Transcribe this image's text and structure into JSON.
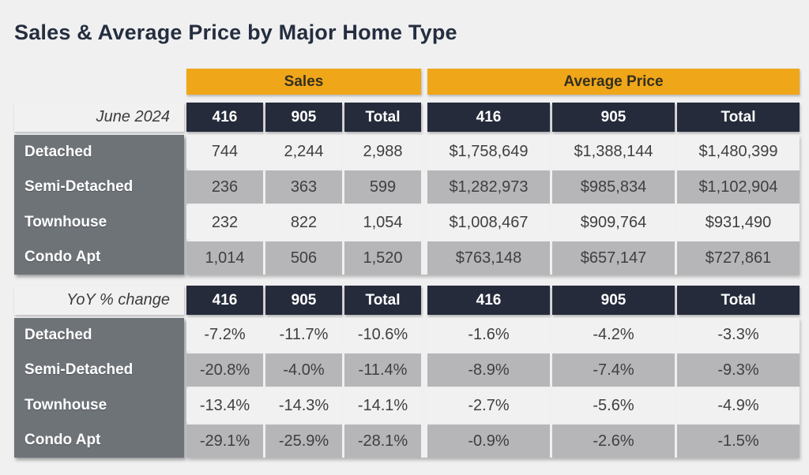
{
  "chart_data": {
    "type": "table",
    "title": "Sales & Average Price by Major Home Type",
    "group_headers": [
      "Sales",
      "Average Price"
    ],
    "sections": [
      {
        "period_label": "June 2024",
        "col_headers": [
          "416",
          "905",
          "Total",
          "416",
          "905",
          "Total"
        ],
        "rows": [
          {
            "label": "Detached",
            "values": [
              "744",
              "2,244",
              "2,988",
              "$1,758,649",
              "$1,388,144",
              "$1,480,399"
            ]
          },
          {
            "label": "Semi-Detached",
            "values": [
              "236",
              "363",
              "599",
              "$1,282,973",
              "$985,834",
              "$1,102,904"
            ]
          },
          {
            "label": "Townhouse",
            "values": [
              "232",
              "822",
              "1,054",
              "$1,008,467",
              "$909,764",
              "$931,490"
            ]
          },
          {
            "label": "Condo Apt",
            "values": [
              "1,014",
              "506",
              "1,520",
              "$763,148",
              "$657,147",
              "$727,861"
            ]
          }
        ]
      },
      {
        "period_label": "YoY % change",
        "col_headers": [
          "416",
          "905",
          "Total",
          "416",
          "905",
          "Total"
        ],
        "rows": [
          {
            "label": "Detached",
            "values": [
              "-7.2%",
              "-11.7%",
              "-10.6%",
              "-1.6%",
              "-4.2%",
              "-3.3%"
            ]
          },
          {
            "label": "Semi-Detached",
            "values": [
              "-20.8%",
              "-4.0%",
              "-11.4%",
              "-8.9%",
              "-7.4%",
              "-9.3%"
            ]
          },
          {
            "label": "Townhouse",
            "values": [
              "-13.4%",
              "-14.3%",
              "-14.1%",
              "-2.7%",
              "-5.6%",
              "-4.9%"
            ]
          },
          {
            "label": "Condo Apt",
            "values": [
              "-29.1%",
              "-25.9%",
              "-28.1%",
              "-0.9%",
              "-2.6%",
              "-1.5%"
            ]
          }
        ]
      }
    ],
    "layout": {
      "grid": "off",
      "legend": "none"
    }
  },
  "colors": {
    "accent_orange": "#f0a619",
    "header_navy": "#252b3b",
    "row_label_gray": "#6e7378",
    "row_light": "#f1f1f2",
    "row_dark": "#b6b6b8",
    "page_background": "#f0f0f1",
    "title_text": "#252e3f"
  }
}
